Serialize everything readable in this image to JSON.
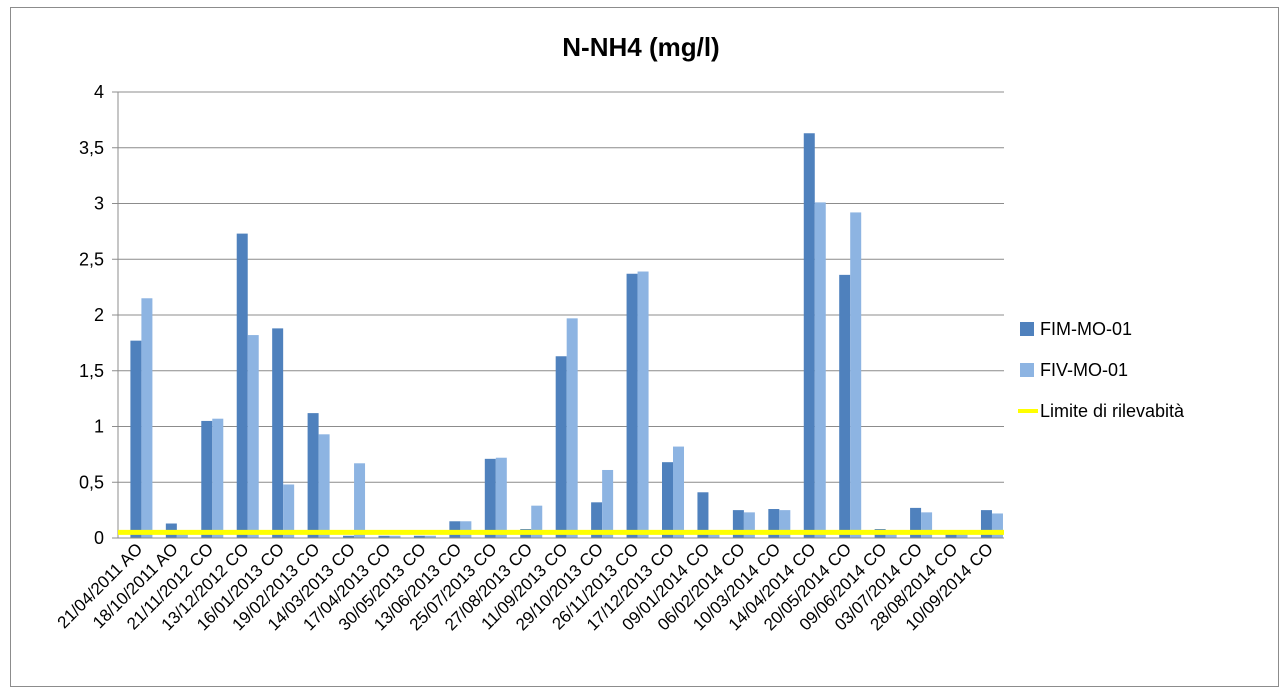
{
  "chart_data": {
    "type": "bar",
    "title": "N-NH4 (mg/l)",
    "xlabel": "",
    "ylabel": "",
    "ylim": [
      0,
      4
    ],
    "yticks": [
      "0",
      "0,5",
      "1",
      "1,5",
      "2",
      "2,5",
      "3",
      "3,5",
      "4"
    ],
    "grid": true,
    "legend_position": "right",
    "categories": [
      "21/04/2011 AO",
      "18/10/2011 AO",
      "21/11/2012 CO",
      "13/12/2012 CO",
      "16/01/2013 CO",
      "19/02/2013 CO",
      "14/03/2013 CO",
      "17/04/2013 CO",
      "30/05/2013 CO",
      "13/06/2013 CO",
      "25/07/2013 CO",
      "27/08/2013 CO",
      "11/09/2013 CO",
      "29/10/2013 CO",
      "26/11/2013 CO",
      "17/12/2013 CO",
      "09/01/2014 CO",
      "06/02/2014 CO",
      "10/03/2014 CO",
      "14/04/2014 CO",
      "20/05/2014 CO",
      "09/06/2014 CO",
      "03/07/2014 CO",
      "28/08/2014 CO",
      "10/09/2014 CO"
    ],
    "series": [
      {
        "name": "FIM-MO-01",
        "color": "#4f81bd",
        "values": [
          1.77,
          0.13,
          1.05,
          2.73,
          1.88,
          1.12,
          0.02,
          0.02,
          0.02,
          0.15,
          0.71,
          0.08,
          1.63,
          0.32,
          2.37,
          0.68,
          0.41,
          0.25,
          0.26,
          3.63,
          2.36,
          0.08,
          0.27,
          0.06,
          0.25
        ]
      },
      {
        "name": "FIV-MO-01",
        "color": "#8db4e2",
        "values": [
          2.15,
          0.07,
          1.07,
          1.82,
          0.48,
          0.93,
          0.67,
          0.02,
          0.02,
          0.15,
          0.72,
          0.29,
          1.97,
          0.61,
          2.39,
          0.82,
          0.06,
          0.23,
          0.25,
          3.01,
          2.92,
          0.07,
          0.23,
          0.06,
          0.22
        ]
      }
    ],
    "limit_line": {
      "name": "Limite di rilevabità",
      "color": "#ffff00",
      "value": 0.05
    }
  }
}
